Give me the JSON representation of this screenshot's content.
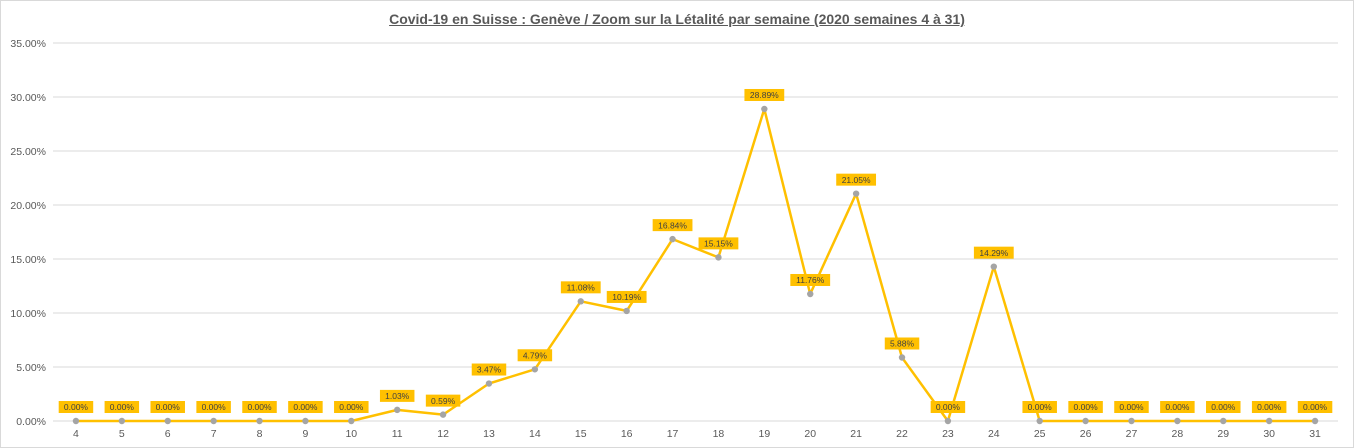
{
  "chart_data": {
    "type": "line",
    "title": "Covid-19 en Suisse : Genève / Zoom sur la Létalité par semaine (2020 semaines 4 à 31)",
    "xlabel": "",
    "ylabel": "",
    "categories": [
      "4",
      "5",
      "6",
      "7",
      "8",
      "9",
      "10",
      "11",
      "12",
      "13",
      "14",
      "15",
      "16",
      "17",
      "18",
      "19",
      "20",
      "21",
      "22",
      "23",
      "24",
      "25",
      "26",
      "27",
      "28",
      "29",
      "30",
      "31"
    ],
    "series": [
      {
        "values": [
          0,
          0,
          0,
          0,
          0,
          0,
          0,
          1.03,
          0.59,
          3.47,
          4.79,
          11.08,
          10.19,
          16.84,
          15.15,
          28.89,
          11.76,
          21.05,
          5.88,
          0,
          14.29,
          0,
          0,
          0,
          0,
          0,
          0,
          0
        ],
        "labels": [
          "0.00%",
          "0.00%",
          "0.00%",
          "0.00%",
          "0.00%",
          "0.00%",
          "0.00%",
          "1.03%",
          "0.59%",
          "3.47%",
          "4.79%",
          "11.08%",
          "10.19%",
          "16.84%",
          "15.15%",
          "28.89%",
          "11.76%",
          "21.05%",
          "5.88%",
          "0.00%",
          "14.29%",
          "0.00%",
          "0.00%",
          "0.00%",
          "0.00%",
          "0.00%",
          "0.00%",
          "0.00%"
        ]
      }
    ],
    "ylim": [
      0,
      35
    ],
    "yticks": [
      "0.00%",
      "5.00%",
      "10.00%",
      "15.00%",
      "20.00%",
      "25.00%",
      "30.00%",
      "35.00%"
    ],
    "grid": true,
    "legend": "none",
    "colors": {
      "line": "#ffc000",
      "marker": "#a5a5a5",
      "label_bg": "#ffc000",
      "grid": "#d9d9d9",
      "text": "#595959"
    }
  }
}
